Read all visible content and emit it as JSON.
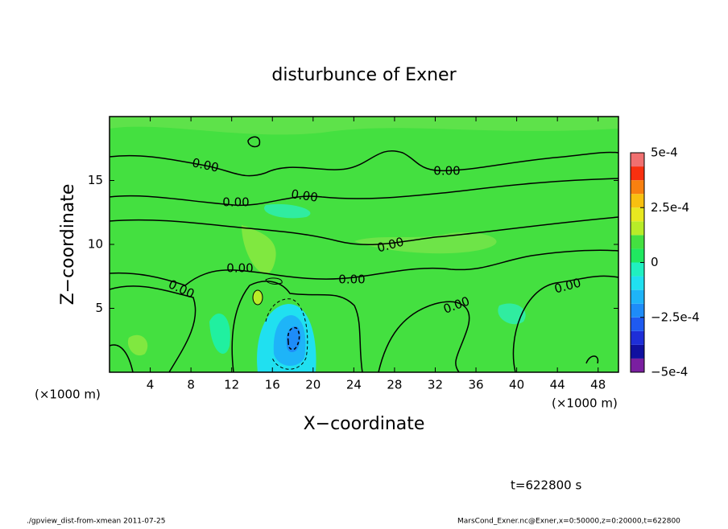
{
  "chart_data": {
    "type": "contour",
    "title": "disturbunce of Exner",
    "x_label": "X−coordinate",
    "y_label": "Z−coordinate",
    "x_unit": "(×1000 m)",
    "time_label": "t=622800 s",
    "footer_left": "./gpview_dist-from-xmean  2011-07-25",
    "footer_right": "MarsCond_Exner.nc@Exner,x=0:50000,z=0:20000,t=622800",
    "xlim": [
      0,
      50
    ],
    "xticks": [
      4,
      8,
      12,
      16,
      20,
      24,
      28,
      32,
      36,
      40,
      44,
      48
    ],
    "ylim": [
      0,
      20
    ],
    "yticks": [
      5,
      10,
      15
    ],
    "contour_labels": [
      "0.00",
      "0.00",
      "0.00",
      "0.00",
      "0.00",
      "0.00",
      "0.00",
      "0.00",
      "0.00",
      "0.00"
    ],
    "colorbar": {
      "lim": [
        -0.0005,
        0.0005
      ],
      "ticks": [
        {
          "value": 0.0005,
          "label": "5e-4"
        },
        {
          "value": 0.00025,
          "label": "2.5e-4"
        },
        0,
        {
          "value": -0.00025,
          "label": "−2.5e-4"
        },
        {
          "value": -0.0005,
          "label": "−5e-4"
        }
      ],
      "colors": [
        "#7a1fa0",
        "#1010a0",
        "#1e2ed8",
        "#1e5af0",
        "#1e8cf8",
        "#1eb4f8",
        "#20e0f0",
        "#20f0c0",
        "#20e860",
        "#44e040",
        "#b8ec28",
        "#e8e820",
        "#f8c010",
        "#f88010",
        "#f83010",
        "#f07070"
      ]
    }
  }
}
